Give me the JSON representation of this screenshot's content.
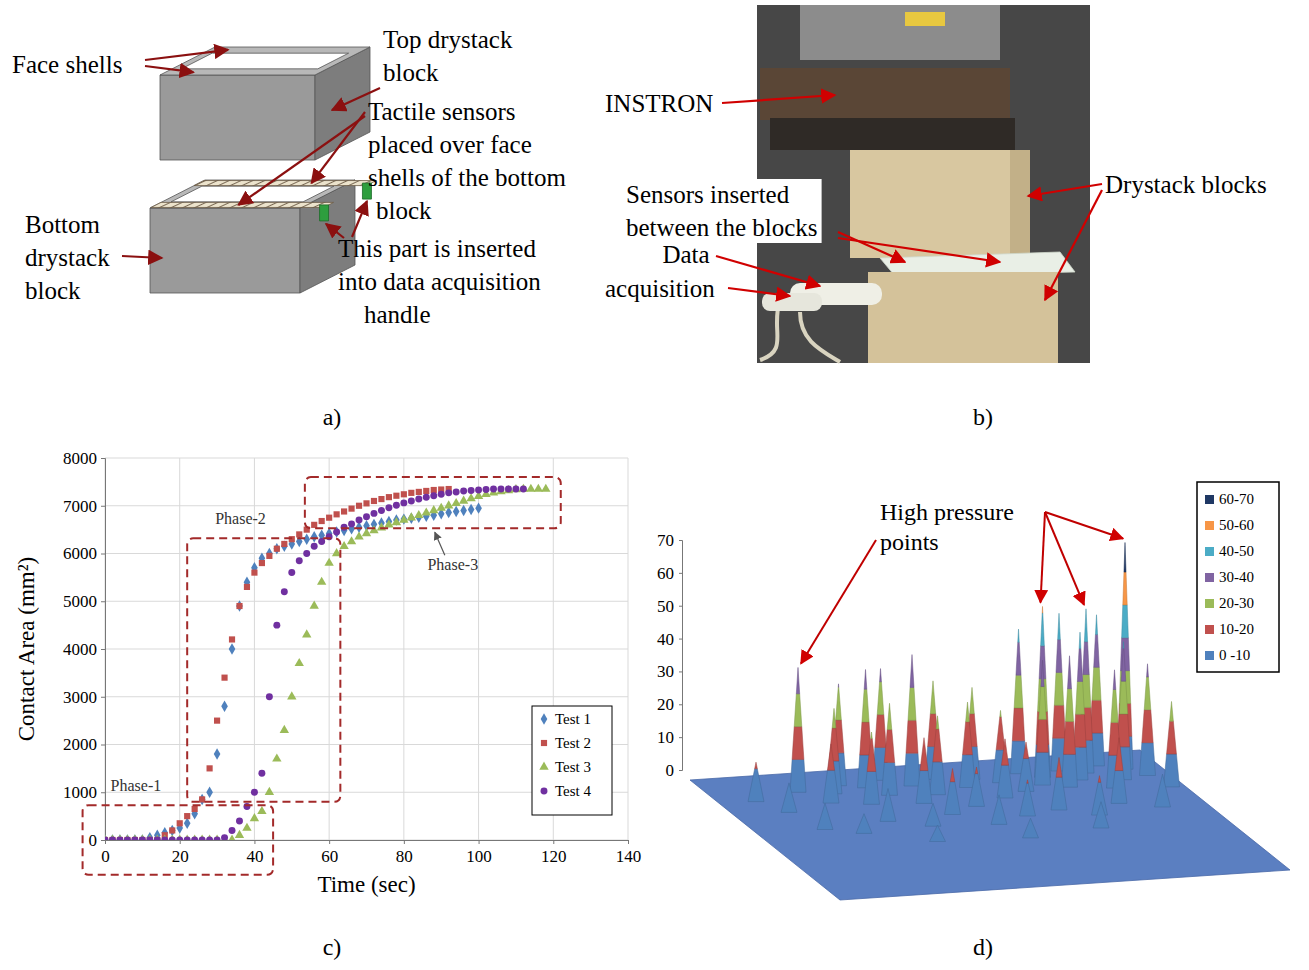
{
  "panel_labels": [
    "a)",
    "b)",
    "c)",
    "d)"
  ],
  "diagram": {
    "face_shells": "Face shells",
    "top_block": [
      "Top drystack",
      "block"
    ],
    "sensors": [
      "Tactile sensors",
      "placed over face",
      "shells of the bottom",
      "block"
    ],
    "bottom_block": [
      "Bottom",
      "drystack",
      "block"
    ],
    "handle": [
      "This part is inserted",
      "into data acquisition",
      "handle"
    ]
  },
  "photo": {
    "instron": "INSTRON",
    "blocks": "Drystack blocks",
    "sensors": [
      "Sensors inserted",
      "between the blocks"
    ],
    "acquisition": [
      "Data",
      "acquisition"
    ]
  },
  "chart_data": [
    {
      "type": "scatter",
      "xlabel": "Time (sec)",
      "ylabel": "Contact Area (mm²)",
      "x": [
        0,
        2,
        4,
        6,
        8,
        10,
        12,
        14,
        16,
        18,
        20,
        22,
        24,
        26,
        28,
        30,
        32,
        34,
        36,
        38,
        40,
        42,
        44,
        46,
        48,
        50,
        52,
        54,
        56,
        58,
        60,
        62,
        64,
        66,
        68,
        70,
        72,
        74,
        76,
        78,
        80,
        82,
        84,
        86,
        88,
        90,
        92,
        94,
        96,
        98,
        100,
        102,
        104,
        106,
        108,
        110,
        112,
        114,
        116,
        118,
        120
      ],
      "series": [
        {
          "name": "Test 1",
          "color": "#4f81bd",
          "marker": "diamond",
          "values": [
            0,
            0,
            0,
            0,
            0,
            0,
            50,
            100,
            150,
            200,
            250,
            350,
            550,
            850,
            1000,
            1800,
            2800,
            4000,
            4900,
            5400,
            5700,
            5900,
            6000,
            6100,
            6150,
            6200,
            6250,
            6300,
            6350,
            6380,
            6420,
            6450,
            6480,
            6520,
            6550,
            6580,
            6610,
            6640,
            6670,
            6700,
            6720,
            6740,
            6760,
            6780,
            6800,
            6830,
            6860,
            6880,
            6900,
            6920,
            6950,
            null,
            null,
            null,
            null,
            null,
            null,
            null,
            null,
            null,
            null
          ]
        },
        {
          "name": "Test 2",
          "color": "#c0504d",
          "marker": "square",
          "values": [
            0,
            0,
            0,
            0,
            0,
            0,
            0,
            0,
            100,
            200,
            350,
            500,
            650,
            850,
            1500,
            2500,
            3400,
            4200,
            4900,
            5300,
            5600,
            5800,
            5950,
            6100,
            6200,
            6300,
            6400,
            6500,
            6600,
            6680,
            6750,
            6820,
            6880,
            6940,
            7000,
            7050,
            7100,
            7140,
            7180,
            7210,
            7240,
            7270,
            7290,
            7310,
            7330,
            7340,
            7350,
            null,
            null,
            null,
            null,
            null,
            null,
            null,
            null,
            null,
            null,
            null,
            null,
            null,
            null
          ]
        },
        {
          "name": "Test 3",
          "color": "#9bbb59",
          "marker": "triangle",
          "values": [
            0,
            0,
            0,
            0,
            0,
            0,
            0,
            0,
            0,
            0,
            0,
            0,
            0,
            0,
            0,
            0,
            0,
            0,
            100,
            250,
            450,
            600,
            1000,
            1700,
            2300,
            3000,
            3700,
            4300,
            4900,
            5400,
            5800,
            6000,
            6150,
            6250,
            6350,
            6420,
            6480,
            6540,
            6600,
            6650,
            6700,
            6750,
            6800,
            6850,
            6900,
            6950,
            7000,
            7050,
            7100,
            7150,
            7200,
            7240,
            7270,
            7300,
            7320,
            7340,
            7350,
            7350,
            7350,
            7350,
            null
          ]
        },
        {
          "name": "Test 4",
          "color": "#7030a0",
          "marker": "circle",
          "values": [
            0,
            0,
            0,
            0,
            0,
            0,
            0,
            0,
            0,
            0,
            0,
            0,
            0,
            0,
            0,
            0,
            50,
            200,
            400,
            700,
            1000,
            1400,
            3000,
            4500,
            5200,
            5600,
            5850,
            6000,
            6150,
            6250,
            6350,
            6450,
            6550,
            6620,
            6700,
            6770,
            6840,
            6900,
            6960,
            7010,
            7060,
            7100,
            7140,
            7180,
            7210,
            7240,
            7270,
            7290,
            7310,
            7320,
            7330,
            7340,
            7350,
            7350,
            7350,
            7350,
            7350,
            null,
            null,
            null,
            null
          ]
        }
      ],
      "xlim": [
        0,
        140
      ],
      "xticks": [
        0,
        20,
        40,
        60,
        80,
        100,
        120,
        140
      ],
      "ylim": [
        0,
        8000
      ],
      "yticks": [
        0,
        1000,
        2000,
        3000,
        4000,
        5000,
        6000,
        7000,
        8000
      ],
      "grid": true,
      "legend": "lower right",
      "annotations": [
        {
          "text": "Phase-1",
          "x": [
            -6,
            45
          ],
          "y": [
            -730,
            730
          ]
        },
        {
          "text": "Phase-2",
          "x": [
            22,
            63
          ],
          "y": [
            800,
            6320
          ]
        },
        {
          "text": "Phase-3",
          "x": [
            53.5,
            122
          ],
          "y": [
            6530,
            7600
          ]
        }
      ]
    },
    {
      "type": "surface",
      "annotation": [
        "High pressure",
        "points"
      ],
      "peaks": {
        "x": [
          0.08,
          0.12,
          0.19,
          0.23,
          0.26,
          0.29,
          0.31,
          0.34,
          0.37,
          0.39,
          0.42,
          0.44,
          0.47,
          0.5,
          0.52,
          0.55,
          0.58,
          0.6,
          0.63,
          0.66,
          0.69,
          0.71,
          0.73,
          0.76,
          0.78,
          0.8,
          0.83,
          0.85,
          0.87,
          0.89,
          0.92,
          0.95,
          0.97,
          0.15,
          0.22,
          0.3,
          0.38,
          0.45,
          0.52,
          0.6,
          0.68,
          0.75,
          0.82,
          0.9,
          0.35,
          0.55,
          0.72
        ],
        "y": [
          0.2,
          0.3,
          0.15,
          0.25,
          0.18,
          0.12,
          0.28,
          0.15,
          0.22,
          0.1,
          0.3,
          0.16,
          0.24,
          0.12,
          0.35,
          0.2,
          0.14,
          0.3,
          0.18,
          0.26,
          0.12,
          0.22,
          0.16,
          0.25,
          0.12,
          0.2,
          0.15,
          0.28,
          0.1,
          0.22,
          0.14,
          0.2,
          0.3,
          0.45,
          0.5,
          0.42,
          0.48,
          0.4,
          0.5,
          0.45,
          0.42,
          0.48,
          0.4,
          0.45,
          0.6,
          0.62,
          0.58
        ],
        "values": [
          12,
          9,
          38,
          18,
          26,
          31,
          22,
          36,
          28,
          34,
          20,
          40,
          24,
          30,
          12,
          26,
          28,
          18,
          22,
          15,
          44,
          38,
          52,
          40,
          48,
          45,
          50,
          36,
          46,
          42,
          69,
          34,
          26,
          8,
          6,
          10,
          7,
          14,
          9,
          11,
          16,
          12,
          20,
          10,
          5,
          6,
          8
        ]
      },
      "ylim": [
        0,
        70
      ],
      "yticks": [
        0,
        10,
        20,
        30,
        40,
        50,
        60,
        70
      ],
      "tick_labels": "y",
      "bands": {
        "labels": [
          "0 -10",
          "10-20",
          "20-30",
          "30-40",
          "40-50",
          "50-60",
          "60-70"
        ],
        "bounds": [
          0,
          10,
          20,
          30,
          40,
          50,
          60,
          70
        ],
        "colors": [
          "#4f81bd",
          "#c0504d",
          "#9bbb59",
          "#8064a2",
          "#4bacc6",
          "#f79646",
          "#1f3864"
        ]
      }
    }
  ]
}
